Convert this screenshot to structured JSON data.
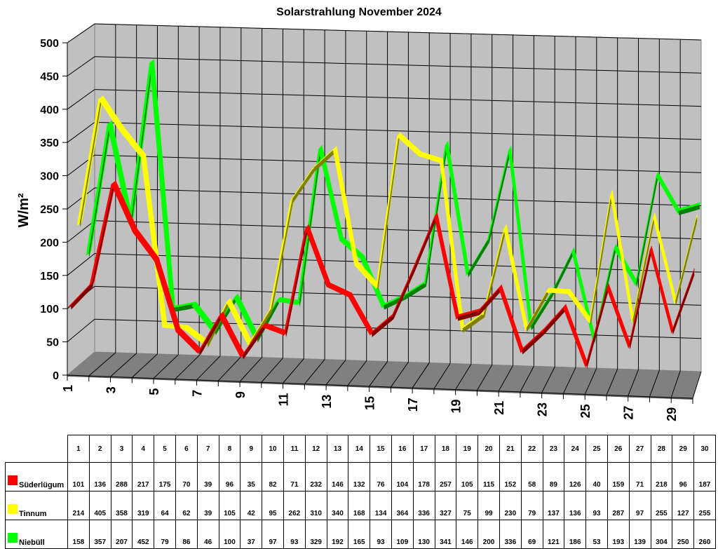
{
  "title": "Solarstrahlung November 2024",
  "chart_data": {
    "type": "line",
    "style": "3d-ribbon",
    "title": "Solarstrahlung November 2024",
    "xlabel": "",
    "ylabel": "W/m²",
    "ylim": [
      0,
      500
    ],
    "yticks": [
      0,
      50,
      100,
      150,
      200,
      250,
      300,
      350,
      400,
      450,
      500
    ],
    "x_tick_labels": [
      "1",
      "3",
      "5",
      "7",
      "9",
      "11",
      "13",
      "15",
      "17",
      "19",
      "21",
      "23",
      "25",
      "27",
      "29"
    ],
    "grid": true,
    "legend_position": "table-below",
    "categories": [
      "1",
      "2",
      "3",
      "4",
      "5",
      "6",
      "7",
      "8",
      "9",
      "10",
      "11",
      "12",
      "13",
      "14",
      "15",
      "16",
      "17",
      "18",
      "19",
      "20",
      "21",
      "22",
      "23",
      "24",
      "25",
      "26",
      "27",
      "28",
      "29",
      "30"
    ],
    "series": [
      {
        "name": "Süderlügum",
        "color": "#ff0000",
        "side_color": "#800000",
        "values": [
          101,
          136,
          288,
          217,
          175,
          70,
          39,
          96,
          35,
          82,
          71,
          232,
          146,
          132,
          76,
          104,
          178,
          257,
          105,
          115,
          152,
          58,
          89,
          126,
          40,
          159,
          71,
          218,
          96,
          187
        ]
      },
      {
        "name": "Tinnum",
        "color": "#ffff00",
        "side_color": "#808000",
        "values": [
          214,
          405,
          358,
          319,
          64,
          62,
          39,
          105,
          42,
          95,
          262,
          310,
          340,
          168,
          134,
          364,
          336,
          327,
          75,
          99,
          230,
          79,
          137,
          136,
          93,
          287,
          97,
          255,
          127,
          255
        ]
      },
      {
        "name": "Niebüll",
        "color": "#00ff00",
        "side_color": "#008000",
        "values": [
          158,
          357,
          207,
          452,
          79,
          86,
          46,
          100,
          37,
          97,
          93,
          329,
          192,
          165,
          93,
          109,
          130,
          341,
          146,
          200,
          336,
          69,
          121,
          186,
          53,
          193,
          139,
          304,
          250,
          260
        ]
      }
    ]
  },
  "table": {
    "header": [
      "1",
      "2",
      "3",
      "4",
      "5",
      "6",
      "7",
      "8",
      "9",
      "10",
      "11",
      "12",
      "13",
      "14",
      "15",
      "16",
      "17",
      "18",
      "19",
      "20",
      "21",
      "22",
      "23",
      "24",
      "25",
      "26",
      "27",
      "28",
      "29",
      "30"
    ],
    "rows": [
      {
        "name": "Süderlügum",
        "color": "#ff0000",
        "values": [
          "101",
          "136",
          "288",
          "217",
          "175",
          "70",
          "39",
          "96",
          "35",
          "82",
          "71",
          "232",
          "146",
          "132",
          "76",
          "104",
          "178",
          "257",
          "105",
          "115",
          "152",
          "58",
          "89",
          "126",
          "40",
          "159",
          "71",
          "218",
          "96",
          "187"
        ]
      },
      {
        "name": "Tinnum",
        "color": "#ffff00",
        "values": [
          "214",
          "405",
          "358",
          "319",
          "64",
          "62",
          "39",
          "105",
          "42",
          "95",
          "262",
          "310",
          "340",
          "168",
          "134",
          "364",
          "336",
          "327",
          "75",
          "99",
          "230",
          "79",
          "137",
          "136",
          "93",
          "287",
          "97",
          "255",
          "127",
          "255"
        ]
      },
      {
        "name": "Niebüll",
        "color": "#00ff00",
        "values": [
          "158",
          "357",
          "207",
          "452",
          "79",
          "86",
          "46",
          "100",
          "37",
          "97",
          "93",
          "329",
          "192",
          "165",
          "93",
          "109",
          "130",
          "341",
          "146",
          "200",
          "336",
          "69",
          "121",
          "186",
          "53",
          "193",
          "139",
          "304",
          "250",
          "260"
        ]
      }
    ]
  },
  "colors": {
    "wall": "#c0c0c0",
    "floor": "#808080",
    "grid": "#000000",
    "background": "#ffffff"
  }
}
